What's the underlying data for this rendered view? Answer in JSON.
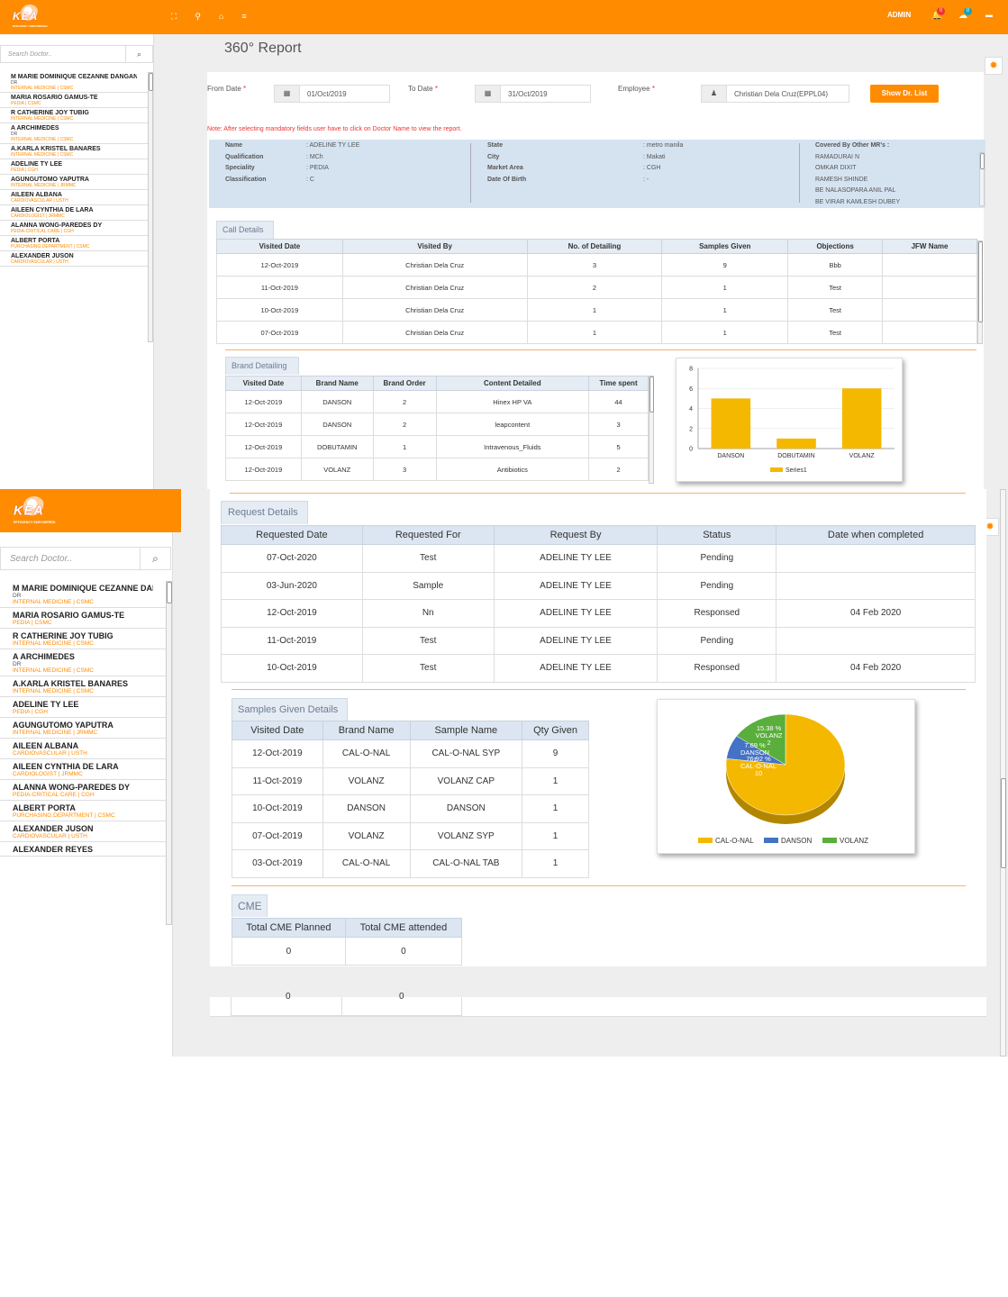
{
  "app": {
    "logo_text": "KEA",
    "logo_tagline": "EFFICIENCY EMPOWERED",
    "admin_label": "ADMIN",
    "notif_count": "0",
    "msg_count": "0"
  },
  "sidebar": {
    "search_placeholder": "Search Doctor..",
    "doctors": [
      {
        "name": "M MARIE DOMINIQUE CEZANNE DANGANAN",
        "title": "DR",
        "specialty": "INTERNAL MEDICINE | CSMC"
      },
      {
        "name": "MARIA ROSARIO GAMUS-TE",
        "title": "",
        "specialty": "PEDIA | CSMC"
      },
      {
        "name": "R CATHERINE JOY TUBIG",
        "title": "",
        "specialty": "INTERNAL MEDICINE | CSMC"
      },
      {
        "name": "A ARCHIMEDES",
        "title": "DR",
        "specialty": "INTERNAL MEDICINE | CSMC"
      },
      {
        "name": "A.KARLA KRISTEL BANARES",
        "title": "",
        "specialty": "INTERNAL MEDICINE | CSMC"
      },
      {
        "name": "ADELINE TY LEE",
        "title": "",
        "specialty": "PEDIA | CGH"
      },
      {
        "name": "AGUNGUTOMO YAPUTRA",
        "title": "",
        "specialty": "INTERNAL MEDICINE | JRMMC"
      },
      {
        "name": "AILEEN ALBANA",
        "title": "",
        "specialty": "CARDIOVASCULAR | USTH"
      },
      {
        "name": "AILEEN CYNTHIA DE LARA",
        "title": "",
        "specialty": "CARDIOLOGIST | JRMMC"
      },
      {
        "name": "ALANNA WONG-PAREDES DY",
        "title": "",
        "specialty": "PEDIA-CRITICAL CARE | CGH"
      },
      {
        "name": "ALBERT PORTA",
        "title": "",
        "specialty": "PURCHASING DEPARTMENT | CSMC"
      },
      {
        "name": "ALEXANDER JUSON",
        "title": "",
        "specialty": "CARDIOVASCULAR | USTH"
      },
      {
        "name": "ALEXANDER REYES",
        "title": "",
        "specialty": ""
      }
    ]
  },
  "page": {
    "title": "360° Report"
  },
  "filters": {
    "from_label": "From Date",
    "to_label": "To Date",
    "employee_label": "Employee",
    "required_mark": "*",
    "from_value": "01/Oct/2019",
    "to_value": "31/Oct/2019",
    "employee_value": "Christian Dela Cruz(EPPL04)",
    "show_button": "Show Dr. List"
  },
  "note": "Note: After selecting mandatory fields user have to click on Doctor Name to view the report.",
  "doctor_info": {
    "left": [
      {
        "k": "Name",
        "v": ": ADELINE TY LEE"
      },
      {
        "k": "Qualification",
        "v": ": MCh"
      },
      {
        "k": "Speciality",
        "v": ": PEDIA"
      },
      {
        "k": "Classification",
        "v": ": C"
      }
    ],
    "mid": [
      {
        "k": "State",
        "v": ": metro manila"
      },
      {
        "k": "City",
        "v": ": Makati"
      },
      {
        "k": "Market Area",
        "v": ": CGH"
      },
      {
        "k": "Date Of Birth",
        "v": ": -"
      }
    ],
    "covered_label": "Covered By Other MR's :",
    "covered": [
      "RAMADURAI N",
      "OMKAR DIXIT",
      "RAMESH SHINDE",
      "BE NALASOPARA ANIL PAL",
      "BE VIRAR KAMLESH DUBEY"
    ]
  },
  "call_details": {
    "tab": "Call Details",
    "headers": [
      "Visited Date",
      "Visited By",
      "No. of Detailing",
      "Samples Given",
      "Objections",
      "JFW Name"
    ],
    "rows": [
      [
        "12-Oct-2019",
        "Christian Dela Cruz",
        "3",
        "9",
        "Bbb",
        ""
      ],
      [
        "11-Oct-2019",
        "Christian Dela Cruz",
        "2",
        "1",
        "Test",
        ""
      ],
      [
        "10-Oct-2019",
        "Christian Dela Cruz",
        "1",
        "1",
        "Test",
        ""
      ],
      [
        "07-Oct-2019",
        "Christian Dela Cruz",
        "1",
        "1",
        "Test",
        ""
      ]
    ]
  },
  "brand_detailing": {
    "tab": "Brand Detailing",
    "headers": [
      "Visited Date",
      "Brand Name",
      "Brand Order",
      "Content Detailed",
      "Time spent"
    ],
    "rows": [
      [
        "12-Oct-2019",
        "DANSON",
        "2",
        "Hinex HP VA",
        "44"
      ],
      [
        "12-Oct-2019",
        "DANSON",
        "2",
        "leapcontent",
        "3"
      ],
      [
        "12-Oct-2019",
        "DOBUTAMIN",
        "1",
        "Intravenous_Fluids",
        "5"
      ],
      [
        "12-Oct-2019",
        "VOLANZ",
        "3",
        "Antibiotics",
        "2"
      ]
    ]
  },
  "request_details": {
    "tab": "Request Details",
    "headers": [
      "Requested Date",
      "Requested For",
      "Request By",
      "Status",
      "Date when completed"
    ],
    "rows": [
      [
        "07-Oct-2020",
        "Test",
        "ADELINE TY LEE",
        "Pending",
        ""
      ],
      [
        "03-Jun-2020",
        "Sample",
        "ADELINE TY LEE",
        "Pending",
        ""
      ],
      [
        "12-Oct-2019",
        "Nn",
        "ADELINE TY LEE",
        "Responsed",
        "04 Feb 2020"
      ],
      [
        "11-Oct-2019",
        "Test",
        "ADELINE TY LEE",
        "Pending",
        ""
      ],
      [
        "10-Oct-2019",
        "Test",
        "ADELINE TY LEE",
        "Responsed",
        "04 Feb 2020"
      ]
    ]
  },
  "samples_given": {
    "tab": "Samples Given Details",
    "headers": [
      "Visited Date",
      "Brand Name",
      "Sample Name",
      "Qty Given"
    ],
    "rows": [
      [
        "12-Oct-2019",
        "CAL-O-NAL",
        "CAL-O-NAL SYP",
        "9"
      ],
      [
        "11-Oct-2019",
        "VOLANZ",
        "VOLANZ CAP",
        "1"
      ],
      [
        "10-Oct-2019",
        "DANSON",
        "DANSON",
        "1"
      ],
      [
        "07-Oct-2019",
        "VOLANZ",
        "VOLANZ SYP",
        "1"
      ],
      [
        "03-Oct-2019",
        "CAL-O-NAL",
        "CAL-O-NAL TAB",
        "1"
      ]
    ]
  },
  "cme": {
    "tab": "CME",
    "headers": [
      "Total CME Planned",
      "Total CME attended"
    ],
    "values": [
      "0",
      "0"
    ]
  },
  "colors": {
    "accent": "#ff8c00",
    "bar": "#f5b800",
    "pie": [
      "#f5b800",
      "#4472c4",
      "#5aae3c"
    ]
  },
  "chart_data": [
    {
      "type": "bar",
      "categories": [
        "DANSON",
        "DOBUTAMIN",
        "VOLANZ"
      ],
      "series": [
        {
          "name": "Series1",
          "values": [
            5,
            1,
            6
          ]
        }
      ],
      "ylim": [
        0,
        8
      ],
      "yticks": [
        0,
        2,
        4,
        6,
        8
      ],
      "legend": "bottom",
      "grid": true
    },
    {
      "type": "pie",
      "labels": [
        "CAL-O-NAL",
        "DANSON",
        "VOLANZ"
      ],
      "values": [
        10,
        1,
        2
      ],
      "percent_labels": [
        "76.92 %",
        "7.69 %",
        "15.38 %"
      ],
      "legend": "bottom"
    }
  ]
}
